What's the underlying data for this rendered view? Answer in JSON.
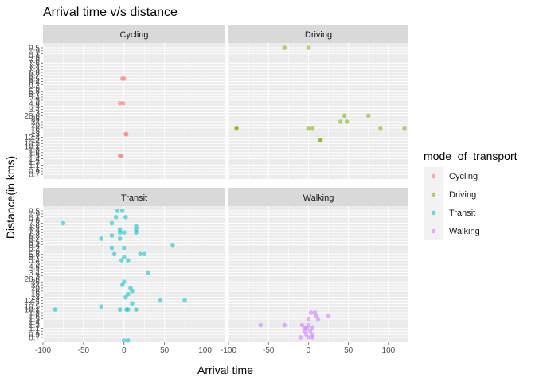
{
  "chart_data": {
    "type": "scatter",
    "title": "Arrival time v/s distance",
    "xlabel": "Arrival time",
    "ylabel": "Distance(in kms)",
    "xlim": [
      -100,
      125
    ],
    "x_ticks": [
      -100,
      -50,
      0,
      50,
      100
    ],
    "y_categories": [
      "0.7",
      "0.9",
      "1",
      "1.1",
      "1.3",
      "1.4",
      "1.5",
      "1.6",
      "1.8",
      "10.1",
      "10.5",
      "12",
      "12.4",
      "13",
      "15",
      "16",
      "20",
      "24",
      "26",
      "28.6",
      "3",
      "3.4",
      "4",
      "4.6",
      "5",
      "5.4",
      "5.7",
      "5.8",
      "6",
      "6.2",
      "6.4",
      "6.5",
      "6.7",
      "6.8",
      "7.3",
      "7.4",
      "7.6",
      "7.8",
      "8",
      "8.1",
      "9",
      "9.5"
    ],
    "legend": {
      "title": "mode_of_transport",
      "position": "right"
    },
    "panels": [
      {
        "name": "Cycling",
        "color": "#F8766D",
        "points": [
          {
            "x": -2,
            "y": "6.5"
          },
          {
            "x": 0,
            "y": "6.5"
          },
          {
            "x": -5,
            "y": "4.6"
          },
          {
            "x": -1,
            "y": "4.6"
          },
          {
            "x": 2,
            "y": "13"
          },
          {
            "x": 3,
            "y": "13"
          },
          {
            "x": -3,
            "y": "1.5"
          },
          {
            "x": -5,
            "y": "1.5"
          }
        ]
      },
      {
        "name": "Driving",
        "color": "#7CAE00",
        "points": [
          {
            "x": -30,
            "y": "9.5"
          },
          {
            "x": 0,
            "y": "9.5"
          },
          {
            "x": 45,
            "y": "28.6"
          },
          {
            "x": 75,
            "y": "28.6"
          },
          {
            "x": 40,
            "y": "24"
          },
          {
            "x": 48,
            "y": "24"
          },
          {
            "x": -90,
            "y": "16"
          },
          {
            "x": -90,
            "y": "16"
          },
          {
            "x": 0,
            "y": "16"
          },
          {
            "x": 5,
            "y": "16"
          },
          {
            "x": 90,
            "y": "16"
          },
          {
            "x": 120,
            "y": "16"
          },
          {
            "x": 15,
            "y": "12"
          },
          {
            "x": 15,
            "y": "12"
          }
        ]
      },
      {
        "name": "Transit",
        "color": "#00BFC4",
        "points": [
          {
            "x": -8,
            "y": "9.5"
          },
          {
            "x": -2,
            "y": "9.5"
          },
          {
            "x": -10,
            "y": "8.1"
          },
          {
            "x": 2,
            "y": "8.1"
          },
          {
            "x": -75,
            "y": "7.8"
          },
          {
            "x": -15,
            "y": "7.8"
          },
          {
            "x": 15,
            "y": "7.6"
          },
          {
            "x": 15,
            "y": "7.4"
          },
          {
            "x": -5,
            "y": "7.4"
          },
          {
            "x": 0,
            "y": "7.3"
          },
          {
            "x": -5,
            "y": "7.3"
          },
          {
            "x": 15,
            "y": "7.3"
          },
          {
            "x": -15,
            "y": "6.8"
          },
          {
            "x": -28,
            "y": "6.7"
          },
          {
            "x": -5,
            "y": "6.7"
          },
          {
            "x": 60,
            "y": "6.4"
          },
          {
            "x": -15,
            "y": "6.2"
          },
          {
            "x": 0,
            "y": "6.2"
          },
          {
            "x": 5,
            "y": "6.0"
          },
          {
            "x": -12,
            "y": "5.8"
          },
          {
            "x": 20,
            "y": "5.8"
          },
          {
            "x": 25,
            "y": "5.8"
          },
          {
            "x": 0,
            "y": "5.7"
          },
          {
            "x": 5,
            "y": "5.4"
          },
          {
            "x": -3,
            "y": "5.4"
          },
          {
            "x": 0,
            "y": "5.0"
          },
          {
            "x": 30,
            "y": "3.4"
          },
          {
            "x": 0,
            "y": "26"
          },
          {
            "x": -2,
            "y": "24"
          },
          {
            "x": 8,
            "y": "20"
          },
          {
            "x": 10,
            "y": "16"
          },
          {
            "x": 5,
            "y": "15"
          },
          {
            "x": 2,
            "y": "13"
          },
          {
            "x": 75,
            "y": "12.4"
          },
          {
            "x": 45,
            "y": "12.4"
          },
          {
            "x": 10,
            "y": "12"
          },
          {
            "x": -28,
            "y": "10.5"
          },
          {
            "x": -85,
            "y": "10.1"
          },
          {
            "x": -5,
            "y": "10.1"
          },
          {
            "x": 5,
            "y": "10.1"
          },
          {
            "x": 15,
            "y": "10.1"
          },
          {
            "x": 3,
            "y": "10.1"
          }
        ]
      },
      {
        "name": "Walking",
        "color": "#C77CFF",
        "points": [
          {
            "x": 3,
            "y": "1.8"
          },
          {
            "x": 8,
            "y": "1.8"
          },
          {
            "x": 10,
            "y": "1.6"
          },
          {
            "x": 25,
            "y": "1.6"
          },
          {
            "x": 0,
            "y": "1.5"
          },
          {
            "x": 12,
            "y": "1.5"
          },
          {
            "x": -60,
            "y": "1.3"
          },
          {
            "x": -30,
            "y": "1.3"
          },
          {
            "x": -8,
            "y": "1.3"
          },
          {
            "x": 0,
            "y": "1.3"
          },
          {
            "x": 5,
            "y": "1.1"
          },
          {
            "x": -5,
            "y": "1.1"
          },
          {
            "x": -2,
            "y": "1.1"
          },
          {
            "x": -5,
            "y": "1"
          },
          {
            "x": 2,
            "y": "1"
          },
          {
            "x": 5,
            "y": "0.9"
          },
          {
            "x": -3,
            "y": "0.9"
          },
          {
            "x": -10,
            "y": "0.7"
          },
          {
            "x": 0,
            "y": "0.7"
          },
          {
            "x": 5,
            "y": "0.7"
          }
        ]
      }
    ]
  }
}
